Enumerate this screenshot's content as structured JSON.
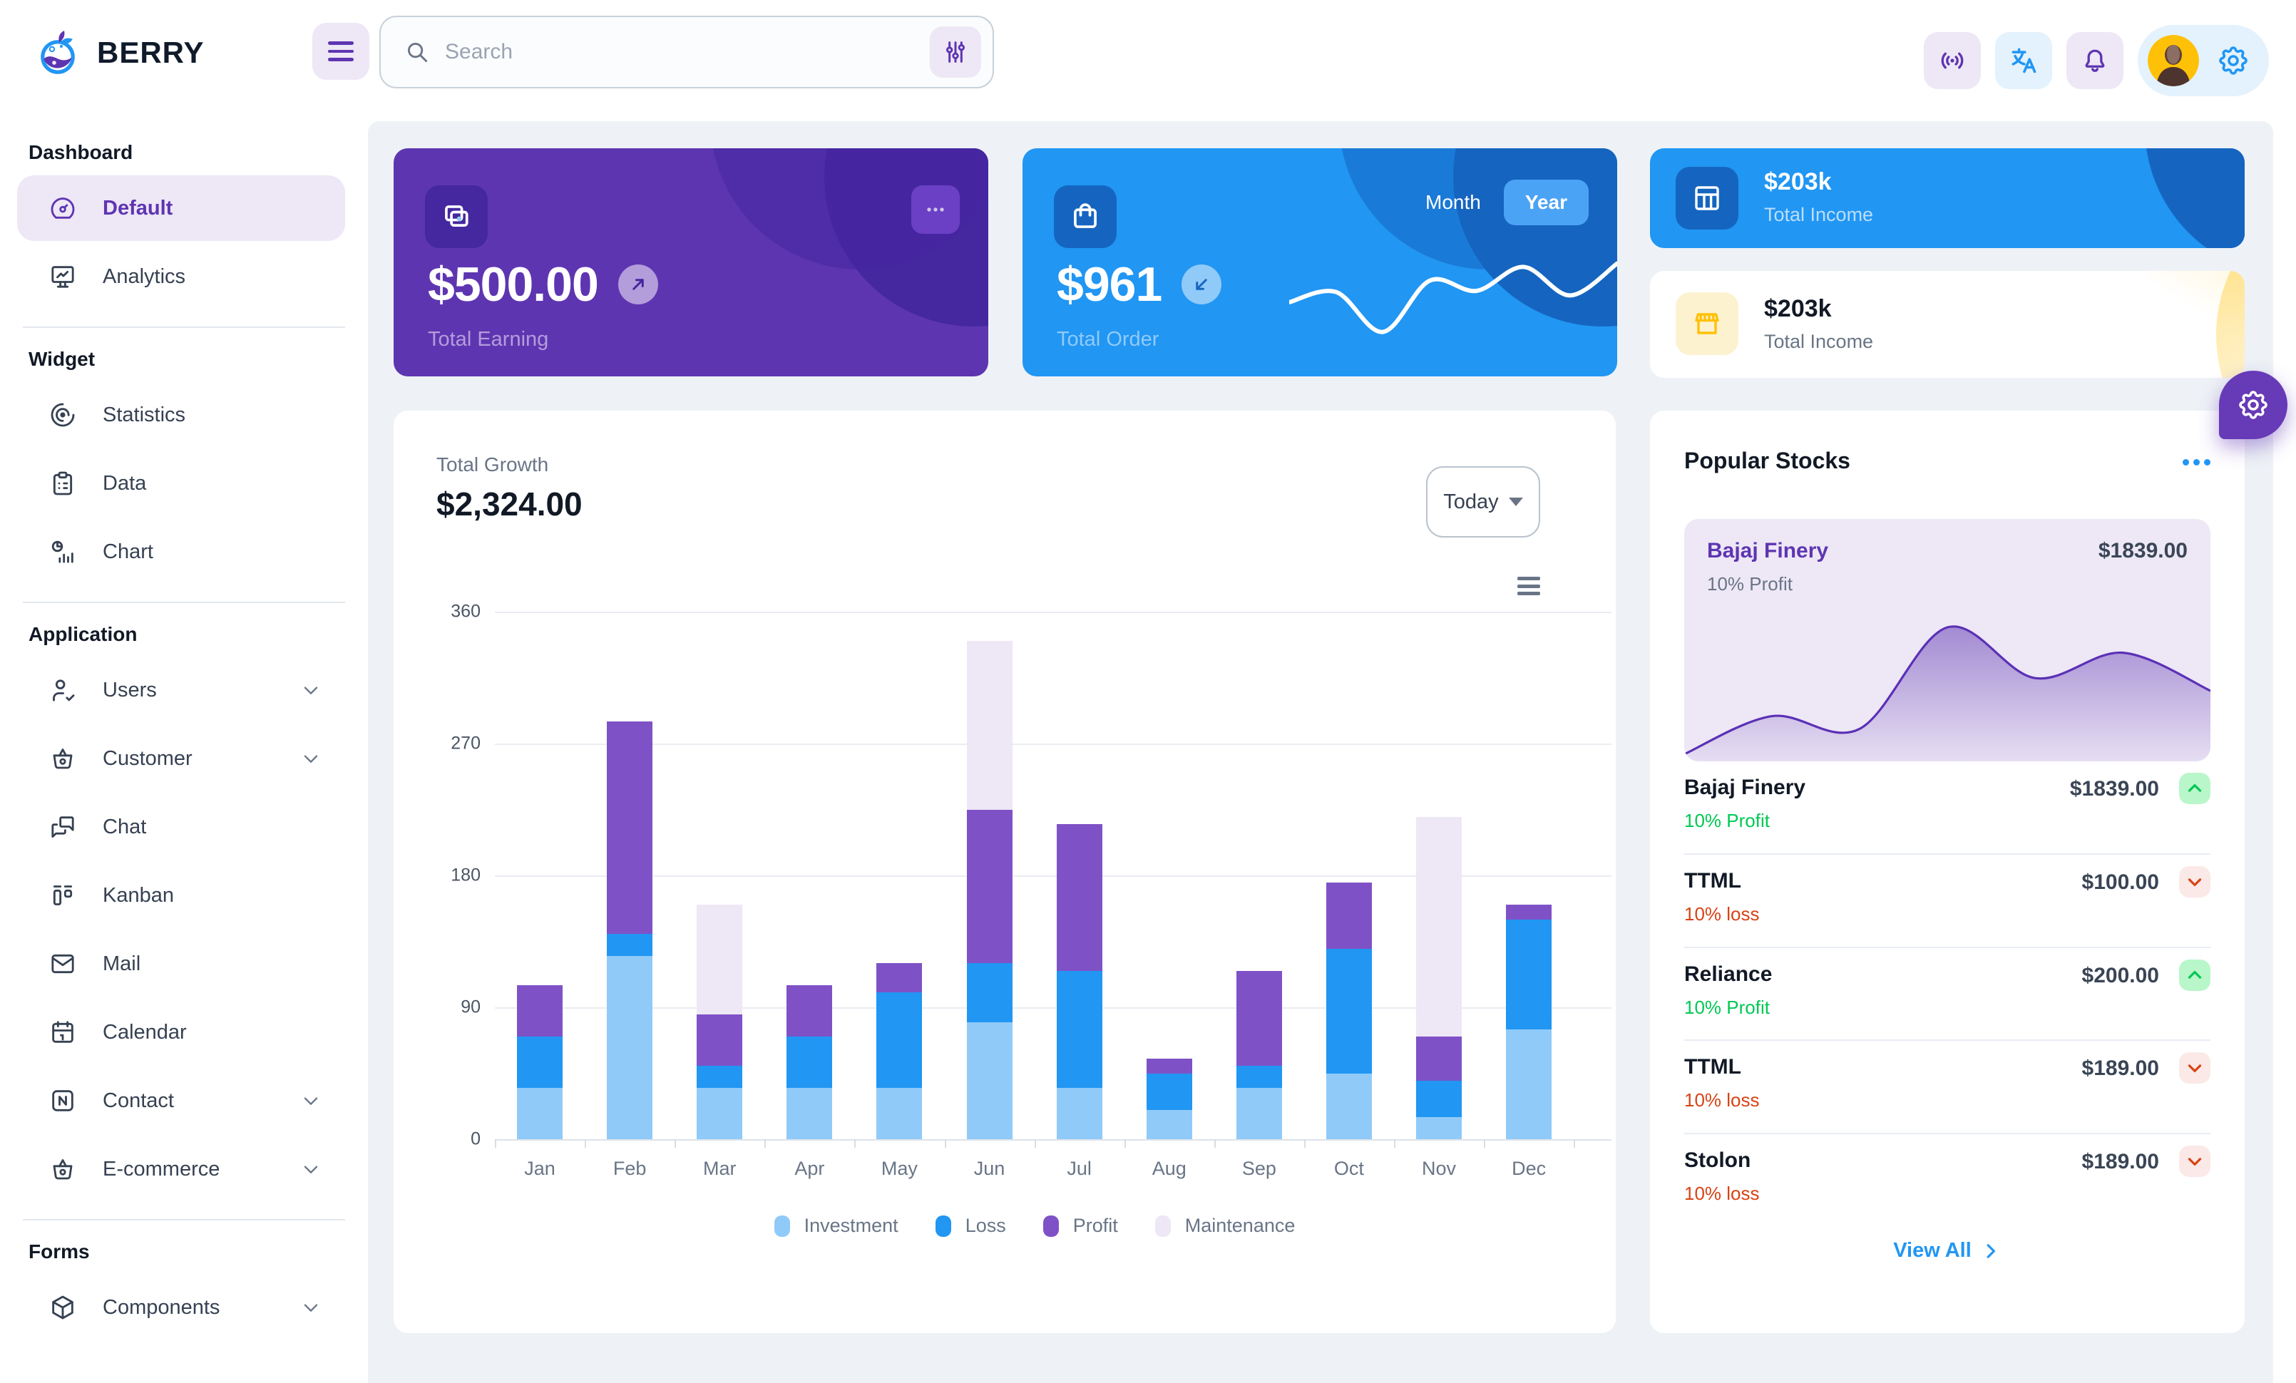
{
  "brand": {
    "name": "BERRY"
  },
  "header": {
    "search": {
      "placeholder": "Search"
    },
    "icon_names": [
      "hamburger-icon",
      "search-icon",
      "adjustments-icon",
      "broadcast-icon",
      "language-icon",
      "bell-icon",
      "avatar",
      "settings-gear-icon"
    ]
  },
  "sidebar": {
    "sections": [
      {
        "title": "Dashboard",
        "items": [
          {
            "label": "Default",
            "icon": "gauge",
            "selected": true
          },
          {
            "label": "Analytics",
            "icon": "device-analytics"
          }
        ]
      },
      {
        "title": "Widget",
        "items": [
          {
            "label": "Statistics",
            "icon": "chart-arcs"
          },
          {
            "label": "Data",
            "icon": "clipboard"
          },
          {
            "label": "Chart",
            "icon": "chart-infographic"
          }
        ]
      },
      {
        "title": "Application",
        "items": [
          {
            "label": "Users",
            "icon": "user-check",
            "chevron": true
          },
          {
            "label": "Customer",
            "icon": "basket",
            "chevron": true
          },
          {
            "label": "Chat",
            "icon": "message"
          },
          {
            "label": "Kanban",
            "icon": "kanban"
          },
          {
            "label": "Mail",
            "icon": "mail"
          },
          {
            "label": "Calendar",
            "icon": "calendar"
          },
          {
            "label": "Contact",
            "icon": "nfc",
            "chevron": true
          },
          {
            "label": "E-commerce",
            "icon": "basket",
            "chevron": true
          }
        ]
      },
      {
        "title": "Forms",
        "items": [
          {
            "label": "Components",
            "icon": "box",
            "chevron": true
          }
        ]
      }
    ]
  },
  "cards": {
    "earning": {
      "value": "$500.00",
      "label": "Total Earning"
    },
    "order": {
      "value": "$961",
      "label": "Total Order",
      "toggle_month": "Month",
      "toggle_year": "Year",
      "active": "Year"
    },
    "income_dark": {
      "value": "$203k",
      "label": "Total Income"
    },
    "income_light": {
      "value": "$203k",
      "label": "Total Income"
    }
  },
  "growth": {
    "title": "Total Growth",
    "amount": "$2,324.00",
    "range_selector": "Today"
  },
  "chart_data": [
    {
      "type": "bar",
      "stacked": true,
      "title": "Total Growth",
      "categories": [
        "Jan",
        "Feb",
        "Mar",
        "Apr",
        "May",
        "Jun",
        "Jul",
        "Aug",
        "Sep",
        "Oct",
        "Nov",
        "Dec"
      ],
      "series": [
        {
          "name": "Investment",
          "color": "#90caf9",
          "values": [
            35,
            125,
            35,
            35,
            35,
            80,
            35,
            20,
            35,
            45,
            15,
            75
          ]
        },
        {
          "name": "Loss",
          "color": "#2196f3",
          "values": [
            35,
            15,
            15,
            35,
            65,
            40,
            80,
            25,
            15,
            85,
            25,
            75
          ]
        },
        {
          "name": "Profit",
          "color": "#7e52c6",
          "values": [
            35,
            145,
            35,
            35,
            20,
            105,
            100,
            10,
            65,
            45,
            30,
            10
          ]
        },
        {
          "name": "Maintenance",
          "color": "#ede7f6",
          "values": [
            0,
            0,
            75,
            0,
            0,
            115,
            0,
            0,
            0,
            0,
            150,
            0
          ]
        }
      ],
      "ylim": [
        0,
        360
      ],
      "yticks": [
        0,
        90,
        180,
        270,
        360
      ],
      "grid": true,
      "legend_position": "bottom"
    },
    {
      "type": "line",
      "name": "total-order-sparkline",
      "values": [
        35,
        44,
        9,
        54,
        45,
        66,
        41,
        69
      ]
    },
    {
      "type": "area",
      "name": "bajaj-finery-sparkline",
      "values": [
        0,
        15,
        10,
        50,
        30,
        40,
        25
      ]
    }
  ],
  "stocks": {
    "title": "Popular Stocks",
    "featured": {
      "name": "Bajaj Finery",
      "price": "$1839.00",
      "sub": "10% Profit"
    },
    "items": [
      {
        "name": "Bajaj Finery",
        "price": "$1839.00",
        "sub": "10% Profit",
        "dir": "up"
      },
      {
        "name": "TTML",
        "price": "$100.00",
        "sub": "10% loss",
        "dir": "down"
      },
      {
        "name": "Reliance",
        "price": "$200.00",
        "sub": "10% Profit",
        "dir": "up"
      },
      {
        "name": "TTML",
        "price": "$189.00",
        "sub": "10% loss",
        "dir": "down"
      },
      {
        "name": "Stolon",
        "price": "$189.00",
        "sub": "10% loss",
        "dir": "down"
      }
    ],
    "view_all": "View All"
  },
  "palette": {
    "purple": "#5e35b1",
    "purple_dark": "#4527a0",
    "purple_light": "#ede7f6",
    "blue": "#2196f3",
    "blue_dark": "#1565c0",
    "blue_light": "#90caf9",
    "amber": "#ffc107",
    "success": "#00c853",
    "error": "#d84315",
    "bg": "#eef2f6"
  }
}
